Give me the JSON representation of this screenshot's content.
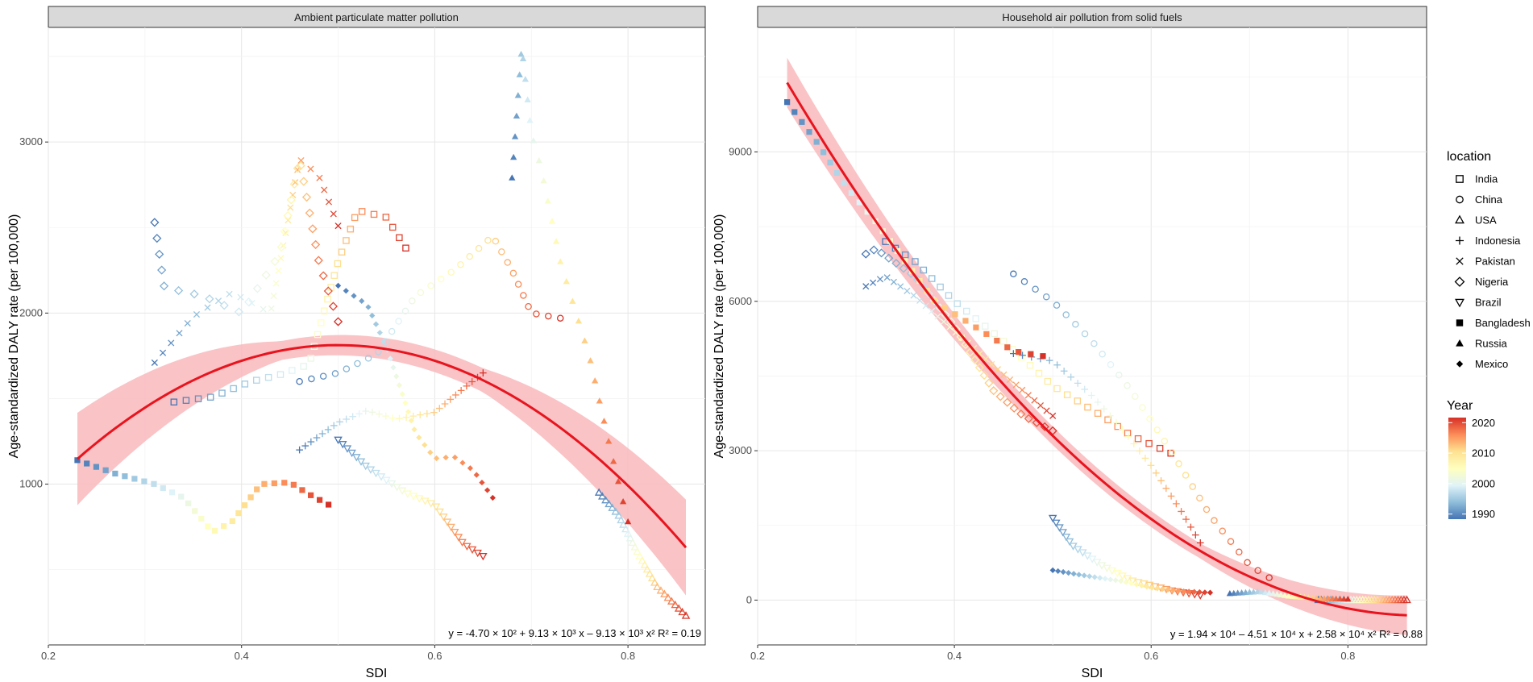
{
  "chart_data": [
    {
      "type": "scatter",
      "panel_title": "Ambient particulate matter pollution",
      "xlabel": "SDI",
      "ylabel": "Age-standardized DALY rate (per 100,000)",
      "xlim": [
        0.2,
        0.88
      ],
      "ylim": [
        60,
        3670
      ],
      "x_ticks": [
        0.2,
        0.4,
        0.6,
        0.8
      ],
      "x_tick_labels": [
        "0.2",
        "0.4",
        "0.6",
        "0.8"
      ],
      "y_ticks": [
        1000,
        2000,
        3000
      ],
      "y_tick_labels": [
        "1000",
        "2000",
        "3000"
      ],
      "fit": {
        "coefficients": [
          -470,
          9130,
          -9130
        ],
        "x_range": [
          0.23,
          0.86
        ],
        "band_halfwidth": [
          270,
          55,
          70,
          280
        ]
      },
      "equation": "y = -4.70 × 10² + 9.13 × 10³ x – 9.13 × 10³ x²   R² = 0.19",
      "series": [
        {
          "location": "India",
          "start": [
            0.33,
            1480
          ],
          "end": [
            0.57,
            2380
          ],
          "path": [
            [
              0.33,
              1480
            ],
            [
              0.37,
              1510
            ],
            [
              0.41,
              1600
            ],
            [
              0.44,
              1640
            ],
            [
              0.47,
              1700
            ],
            [
              0.5,
              2300
            ],
            [
              0.52,
              2600
            ],
            [
              0.55,
              2560
            ],
            [
              0.57,
              2380
            ]
          ]
        },
        {
          "location": "China",
          "start": [
            0.46,
            1600
          ],
          "end": [
            0.73,
            1970
          ],
          "path": [
            [
              0.46,
              1600
            ],
            [
              0.5,
              1650
            ],
            [
              0.54,
              1760
            ],
            [
              0.58,
              2100
            ],
            [
              0.62,
              2250
            ],
            [
              0.66,
              2450
            ],
            [
              0.68,
              2250
            ],
            [
              0.7,
              2000
            ],
            [
              0.73,
              1970
            ]
          ]
        },
        {
          "location": "USA",
          "start": [
            0.77,
            950
          ],
          "end": [
            0.86,
            230
          ],
          "path": [
            [
              0.77,
              950
            ],
            [
              0.79,
              820
            ],
            [
              0.81,
              600
            ],
            [
              0.83,
              400
            ],
            [
              0.86,
              230
            ]
          ]
        },
        {
          "location": "Indonesia",
          "start": [
            0.46,
            1200
          ],
          "end": [
            0.65,
            1650
          ],
          "path": [
            [
              0.46,
              1200
            ],
            [
              0.5,
              1360
            ],
            [
              0.53,
              1430
            ],
            [
              0.56,
              1380
            ],
            [
              0.6,
              1420
            ],
            [
              0.63,
              1560
            ],
            [
              0.65,
              1650
            ]
          ]
        },
        {
          "location": "Pakistan",
          "start": [
            0.31,
            1710
          ],
          "end": [
            0.5,
            2510
          ],
          "path": [
            [
              0.31,
              1710
            ],
            [
              0.35,
              1980
            ],
            [
              0.39,
              2120
            ],
            [
              0.43,
              2000
            ],
            [
              0.46,
              2900
            ],
            [
              0.48,
              2800
            ],
            [
              0.5,
              2510
            ]
          ]
        },
        {
          "location": "Nigeria",
          "start": [
            0.31,
            2530
          ],
          "end": [
            0.5,
            1950
          ],
          "path": [
            [
              0.31,
              2530
            ],
            [
              0.32,
              2150
            ],
            [
              0.36,
              2100
            ],
            [
              0.4,
              2000
            ],
            [
              0.44,
              2350
            ],
            [
              0.46,
              2900
            ],
            [
              0.48,
              2300
            ],
            [
              0.5,
              1950
            ]
          ]
        },
        {
          "location": "Brazil",
          "start": [
            0.5,
            1260
          ],
          "end": [
            0.65,
            580
          ],
          "path": [
            [
              0.5,
              1260
            ],
            [
              0.53,
              1100
            ],
            [
              0.57,
              950
            ],
            [
              0.6,
              880
            ],
            [
              0.63,
              650
            ],
            [
              0.65,
              580
            ]
          ]
        },
        {
          "location": "Bangladesh",
          "start": [
            0.23,
            1140
          ],
          "end": [
            0.49,
            880
          ],
          "path": [
            [
              0.23,
              1140
            ],
            [
              0.27,
              1060
            ],
            [
              0.31,
              1000
            ],
            [
              0.34,
              920
            ],
            [
              0.37,
              720
            ],
            [
              0.39,
              780
            ],
            [
              0.42,
              1000
            ],
            [
              0.45,
              1010
            ],
            [
              0.47,
              940
            ],
            [
              0.49,
              880
            ]
          ]
        },
        {
          "location": "Russia",
          "start": [
            0.68,
            2790
          ],
          "end": [
            0.8,
            780
          ],
          "path": [
            [
              0.68,
              2790
            ],
            [
              0.69,
              3560
            ],
            [
              0.7,
              3050
            ],
            [
              0.71,
              2850
            ],
            [
              0.73,
              2300
            ],
            [
              0.76,
              1750
            ],
            [
              0.78,
              1250
            ],
            [
              0.8,
              780
            ]
          ]
        },
        {
          "location": "Mexico",
          "start": [
            0.5,
            2160
          ],
          "end": [
            0.66,
            920
          ],
          "path": [
            [
              0.5,
              2160
            ],
            [
              0.53,
              2050
            ],
            [
              0.55,
              1800
            ],
            [
              0.58,
              1300
            ],
            [
              0.6,
              1150
            ],
            [
              0.62,
              1160
            ],
            [
              0.64,
              1080
            ],
            [
              0.66,
              920
            ]
          ]
        }
      ]
    },
    {
      "type": "scatter",
      "panel_title": "Household air pollution from solid fuels",
      "xlabel": "SDI",
      "ylabel": "Age-standardized DALY rate (per 100,000)",
      "xlim": [
        0.2,
        0.88
      ],
      "ylim": [
        -900,
        11500
      ],
      "x_ticks": [
        0.2,
        0.4,
        0.6,
        0.8
      ],
      "x_tick_labels": [
        "0.2",
        "0.4",
        "0.6",
        "0.8"
      ],
      "y_ticks": [
        0,
        3000,
        6000,
        9000
      ],
      "y_tick_labels": [
        "0",
        "3000",
        "6000",
        "9000"
      ],
      "fit": {
        "coefficients": [
          19400,
          -45100,
          25800
        ],
        "x_range": [
          0.23,
          0.86
        ],
        "band_halfwidth": [
          500,
          200,
          150,
          400
        ]
      },
      "equation": "y = 1.94 × 10⁴ – 4.51 × 10⁴ x + 2.58 × 10⁴ x²   R² = 0.88",
      "series": [
        {
          "location": "India",
          "start": [
            0.33,
            7200
          ],
          "end": [
            0.62,
            2950
          ],
          "path": [
            [
              0.33,
              7200
            ],
            [
              0.36,
              6800
            ],
            [
              0.4,
              6000
            ],
            [
              0.45,
              5200
            ],
            [
              0.5,
              4300
            ],
            [
              0.55,
              3700
            ],
            [
              0.58,
              3300
            ],
            [
              0.62,
              2950
            ]
          ]
        },
        {
          "location": "China",
          "start": [
            0.46,
            6550
          ],
          "end": [
            0.72,
            450
          ],
          "path": [
            [
              0.46,
              6550
            ],
            [
              0.5,
              6000
            ],
            [
              0.54,
              5200
            ],
            [
              0.58,
              4200
            ],
            [
              0.62,
              3000
            ],
            [
              0.66,
              1700
            ],
            [
              0.7,
              700
            ],
            [
              0.72,
              450
            ]
          ]
        },
        {
          "location": "USA",
          "start": [
            0.77,
            0
          ],
          "end": [
            0.86,
            0
          ],
          "path": [
            [
              0.77,
              0
            ],
            [
              0.8,
              0
            ],
            [
              0.83,
              0
            ],
            [
              0.86,
              0
            ]
          ]
        },
        {
          "location": "Indonesia",
          "start": [
            0.46,
            4950
          ],
          "end": [
            0.65,
            1150
          ],
          "path": [
            [
              0.46,
              4950
            ],
            [
              0.5,
              4800
            ],
            [
              0.54,
              4100
            ],
            [
              0.57,
              3450
            ],
            [
              0.6,
              2700
            ],
            [
              0.63,
              1800
            ],
            [
              0.65,
              1150
            ]
          ]
        },
        {
          "location": "Pakistan",
          "start": [
            0.31,
            6300
          ],
          "end": [
            0.5,
            3700
          ],
          "path": [
            [
              0.31,
              6300
            ],
            [
              0.33,
              6500
            ],
            [
              0.36,
              6100
            ],
            [
              0.4,
              5400
            ],
            [
              0.44,
              4700
            ],
            [
              0.47,
              4200
            ],
            [
              0.5,
              3700
            ]
          ]
        },
        {
          "location": "Nigeria",
          "start": [
            0.31,
            6950
          ],
          "end": [
            0.5,
            3400
          ],
          "path": [
            [
              0.31,
              6950
            ],
            [
              0.32,
              7050
            ],
            [
              0.36,
              6500
            ],
            [
              0.4,
              5500
            ],
            [
              0.44,
              4200
            ],
            [
              0.47,
              3700
            ],
            [
              0.5,
              3400
            ]
          ]
        },
        {
          "location": "Brazil",
          "start": [
            0.5,
            1650
          ],
          "end": [
            0.65,
            100
          ],
          "path": [
            [
              0.5,
              1650
            ],
            [
              0.52,
              1100
            ],
            [
              0.55,
              700
            ],
            [
              0.58,
              400
            ],
            [
              0.62,
              200
            ],
            [
              0.65,
              100
            ]
          ]
        },
        {
          "location": "Bangladesh",
          "start": [
            0.23,
            10000
          ],
          "end": [
            0.49,
            4900
          ],
          "path": [
            [
              0.23,
              10000
            ],
            [
              0.26,
              9200
            ],
            [
              0.29,
              8300
            ],
            [
              0.32,
              7600
            ],
            [
              0.35,
              6800
            ],
            [
              0.38,
              6000
            ],
            [
              0.42,
              5500
            ],
            [
              0.46,
              5000
            ],
            [
              0.49,
              4900
            ]
          ]
        },
        {
          "location": "Russia",
          "start": [
            0.68,
            130
          ],
          "end": [
            0.8,
            20
          ],
          "path": [
            [
              0.68,
              130
            ],
            [
              0.71,
              170
            ],
            [
              0.74,
              80
            ],
            [
              0.77,
              30
            ],
            [
              0.8,
              20
            ]
          ]
        },
        {
          "location": "Mexico",
          "start": [
            0.5,
            600
          ],
          "end": [
            0.66,
            150
          ],
          "path": [
            [
              0.5,
              600
            ],
            [
              0.53,
              500
            ],
            [
              0.57,
              380
            ],
            [
              0.6,
              250
            ],
            [
              0.63,
              180
            ],
            [
              0.66,
              150
            ]
          ]
        }
      ]
    }
  ],
  "legend": {
    "title": "location",
    "items": [
      {
        "label": "India",
        "shape": "square-open"
      },
      {
        "label": "China",
        "shape": "circle-open"
      },
      {
        "label": "USA",
        "shape": "triangle-open"
      },
      {
        "label": "Indonesia",
        "shape": "plus"
      },
      {
        "label": "Pakistan",
        "shape": "cross"
      },
      {
        "label": "Nigeria",
        "shape": "diamond-open"
      },
      {
        "label": "Brazil",
        "shape": "triangle-down-open"
      },
      {
        "label": "Bangladesh",
        "shape": "square-filled"
      },
      {
        "label": "Russia",
        "shape": "triangle-filled"
      },
      {
        "label": "Mexico",
        "shape": "diamond-filled"
      }
    ]
  },
  "colorbar": {
    "title": "Year",
    "min": 1990,
    "max": 2020,
    "ticks": [
      "2020",
      "2010",
      "2000",
      "1990"
    ],
    "stops": [
      "#4575b4",
      "#91bfdb",
      "#e0f3f8",
      "#ffffbf",
      "#fee090",
      "#fc8d59",
      "#d73027"
    ]
  },
  "colors": {
    "fit_line": "#e8141e",
    "band": "#f9b8bc",
    "strip_bg": "#d9d9d9",
    "grid": "#ebebeb"
  }
}
